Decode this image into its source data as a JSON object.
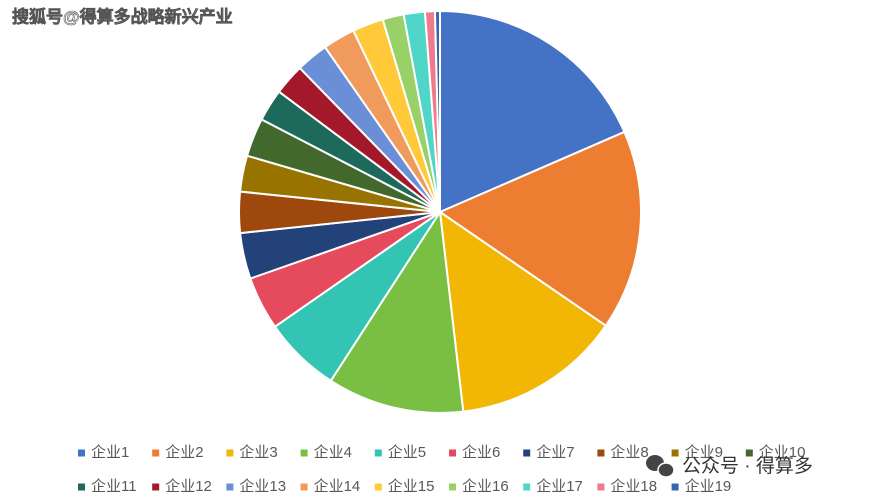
{
  "chart_data": {
    "type": "pie",
    "categories": [
      "企业1",
      "企业2",
      "企业3",
      "企业4",
      "企业5",
      "企业6",
      "企业7",
      "企业8",
      "企业9",
      "企业10",
      "企业11",
      "企业12",
      "企业13",
      "企业14",
      "企业15",
      "企业16",
      "企业17",
      "企业18",
      "企业19"
    ],
    "values": [
      18.5,
      16.1,
      13.6,
      11.0,
      6.2,
      4.3,
      3.7,
      3.3,
      2.9,
      3.1,
      2.6,
      2.5,
      2.6,
      2.6,
      2.5,
      1.7,
      1.7,
      0.8,
      0.4
    ],
    "colors": [
      "#4472c4",
      "#ed7d31",
      "#f2b705",
      "#78bf44",
      "#33c4b3",
      "#e54b5d",
      "#24427a",
      "#9e480e",
      "#997300",
      "#43682b",
      "#1d6a5c",
      "#a3192b",
      "#6b8fd6",
      "#f09a5c",
      "#ffc93a",
      "#9ad068",
      "#4fd6c8",
      "#ee7b8b",
      "#3b63ad"
    ],
    "legend": "bottom"
  },
  "watermarks": [
    "搜狐号@得算多战略新兴产业",
    "公众号 · 得算多"
  ]
}
